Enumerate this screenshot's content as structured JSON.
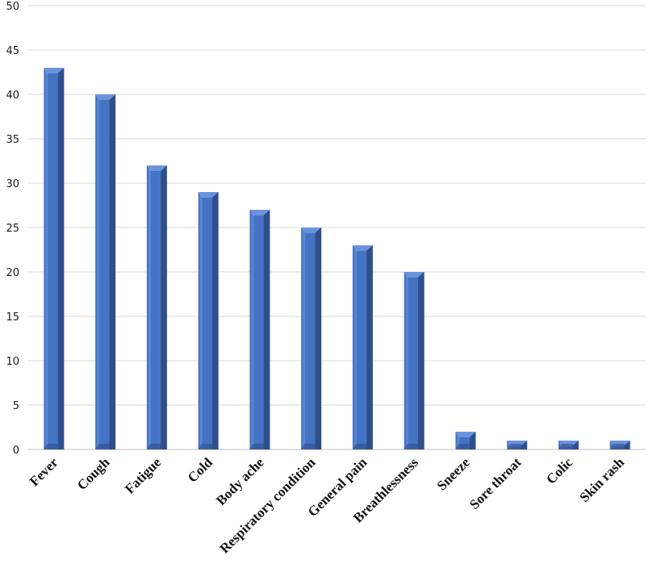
{
  "chart_data": {
    "type": "bar",
    "categories": [
      "Fever",
      "Cough",
      "Fatigue",
      "Cold",
      "Body ache",
      "Respiratory condition",
      "General pain",
      "Breathlessness",
      "Sneeze",
      "Sore throat",
      "Colic",
      "Skin rash"
    ],
    "values": [
      43,
      40,
      32,
      29,
      27,
      25,
      23,
      20,
      2,
      1,
      1,
      1
    ],
    "title": "",
    "xlabel": "",
    "ylabel": "",
    "ylim": [
      0,
      50
    ],
    "yticks": [
      0,
      5,
      10,
      15,
      20,
      25,
      30,
      35,
      40,
      45,
      50
    ],
    "grid": true,
    "legend": "none",
    "colors": {
      "bar_front": "#4472c4",
      "bar_side": "#2f4f8c",
      "bar_top": "#6a93dc"
    }
  }
}
